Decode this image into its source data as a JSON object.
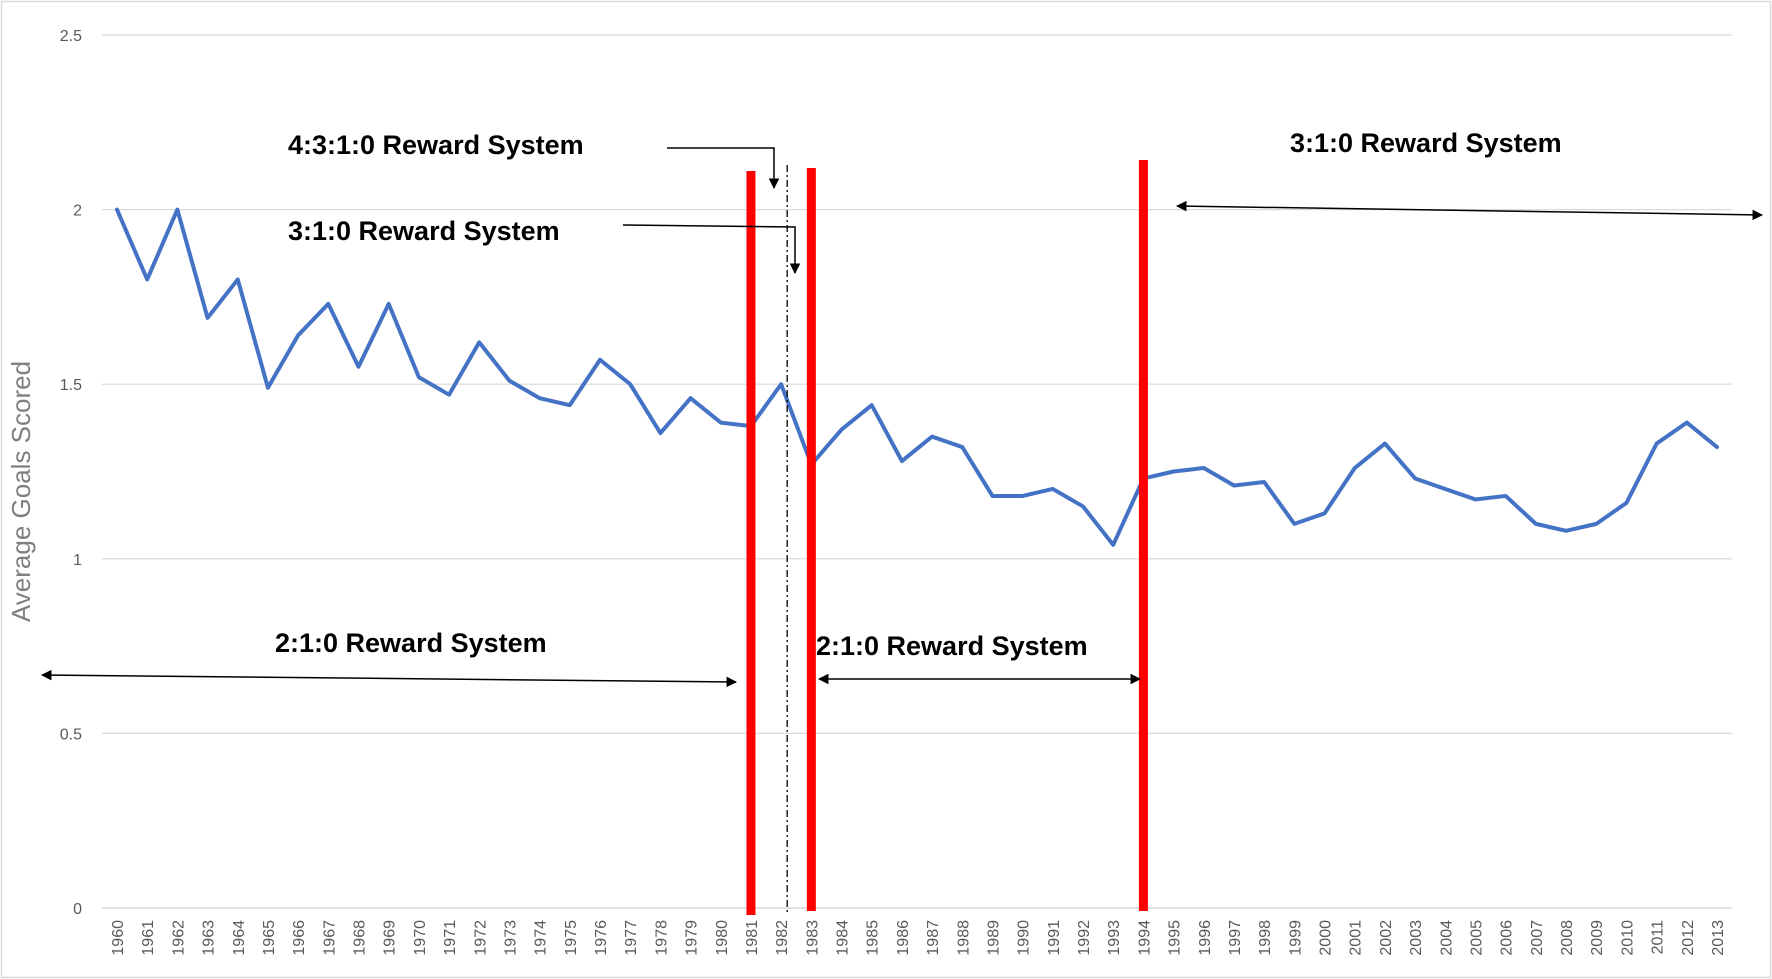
{
  "chart_data": {
    "type": "line",
    "title": "",
    "xlabel": "",
    "ylabel": "Average Goals Scored",
    "ylim": [
      0,
      2.5
    ],
    "yticks": [
      0,
      0.5,
      1,
      1.5,
      2,
      2.5
    ],
    "ytick_labels": [
      "0",
      "0.5",
      "1",
      "1.5",
      "2",
      "2.5"
    ],
    "grid": "horizontal",
    "legend": "none",
    "categories": [
      "1960",
      "1961",
      "1962",
      "1963",
      "1964",
      "1965",
      "1966",
      "1967",
      "1968",
      "1969",
      "1970",
      "1971",
      "1972",
      "1973",
      "1974",
      "1975",
      "1976",
      "1977",
      "1978",
      "1979",
      "1980",
      "1981",
      "1982",
      "1983",
      "1984",
      "1985",
      "1986",
      "1987",
      "1988",
      "1989",
      "1990",
      "1991",
      "1992",
      "1993",
      "1994",
      "1995",
      "1996",
      "1997",
      "1998",
      "1999",
      "2000",
      "2001",
      "2002",
      "2003",
      "2004",
      "2005",
      "2006",
      "2007",
      "2008",
      "2009",
      "2010",
      "2011",
      "2012",
      "2013"
    ],
    "series": [
      {
        "color": "#4472c4",
        "values": [
          2.0,
          1.8,
          2.0,
          1.69,
          1.8,
          1.49,
          1.64,
          1.73,
          1.55,
          1.73,
          1.52,
          1.47,
          1.62,
          1.51,
          1.46,
          1.44,
          1.57,
          1.5,
          1.36,
          1.46,
          1.39,
          1.38,
          1.5,
          1.27,
          1.37,
          1.44,
          1.28,
          1.35,
          1.32,
          1.18,
          1.18,
          1.2,
          1.15,
          1.04,
          1.23,
          1.25,
          1.26,
          1.21,
          1.22,
          1.1,
          1.13,
          1.26,
          1.33,
          1.23,
          1.2,
          1.17,
          1.18,
          1.1,
          1.08,
          1.1,
          1.16,
          1.33,
          1.39,
          1.32
        ]
      }
    ],
    "reference_lines": [
      {
        "year": 1981,
        "color": "#ff0000",
        "style": "solid"
      },
      {
        "year": 1983,
        "color": "#ff0000",
        "style": "solid"
      },
      {
        "year": 1994,
        "color": "#ff0000",
        "style": "solid"
      },
      {
        "year": 1982.2,
        "color": "#000000",
        "style": "dash-dot"
      }
    ],
    "annotations": [
      {
        "text": "4:3:1:0 Reward System"
      },
      {
        "text": "3:1:0 Reward System"
      },
      {
        "text": "3:1:0 Reward System"
      },
      {
        "text": "2:1:0 Reward System"
      },
      {
        "text": "2:1:0 Reward System"
      }
    ]
  }
}
